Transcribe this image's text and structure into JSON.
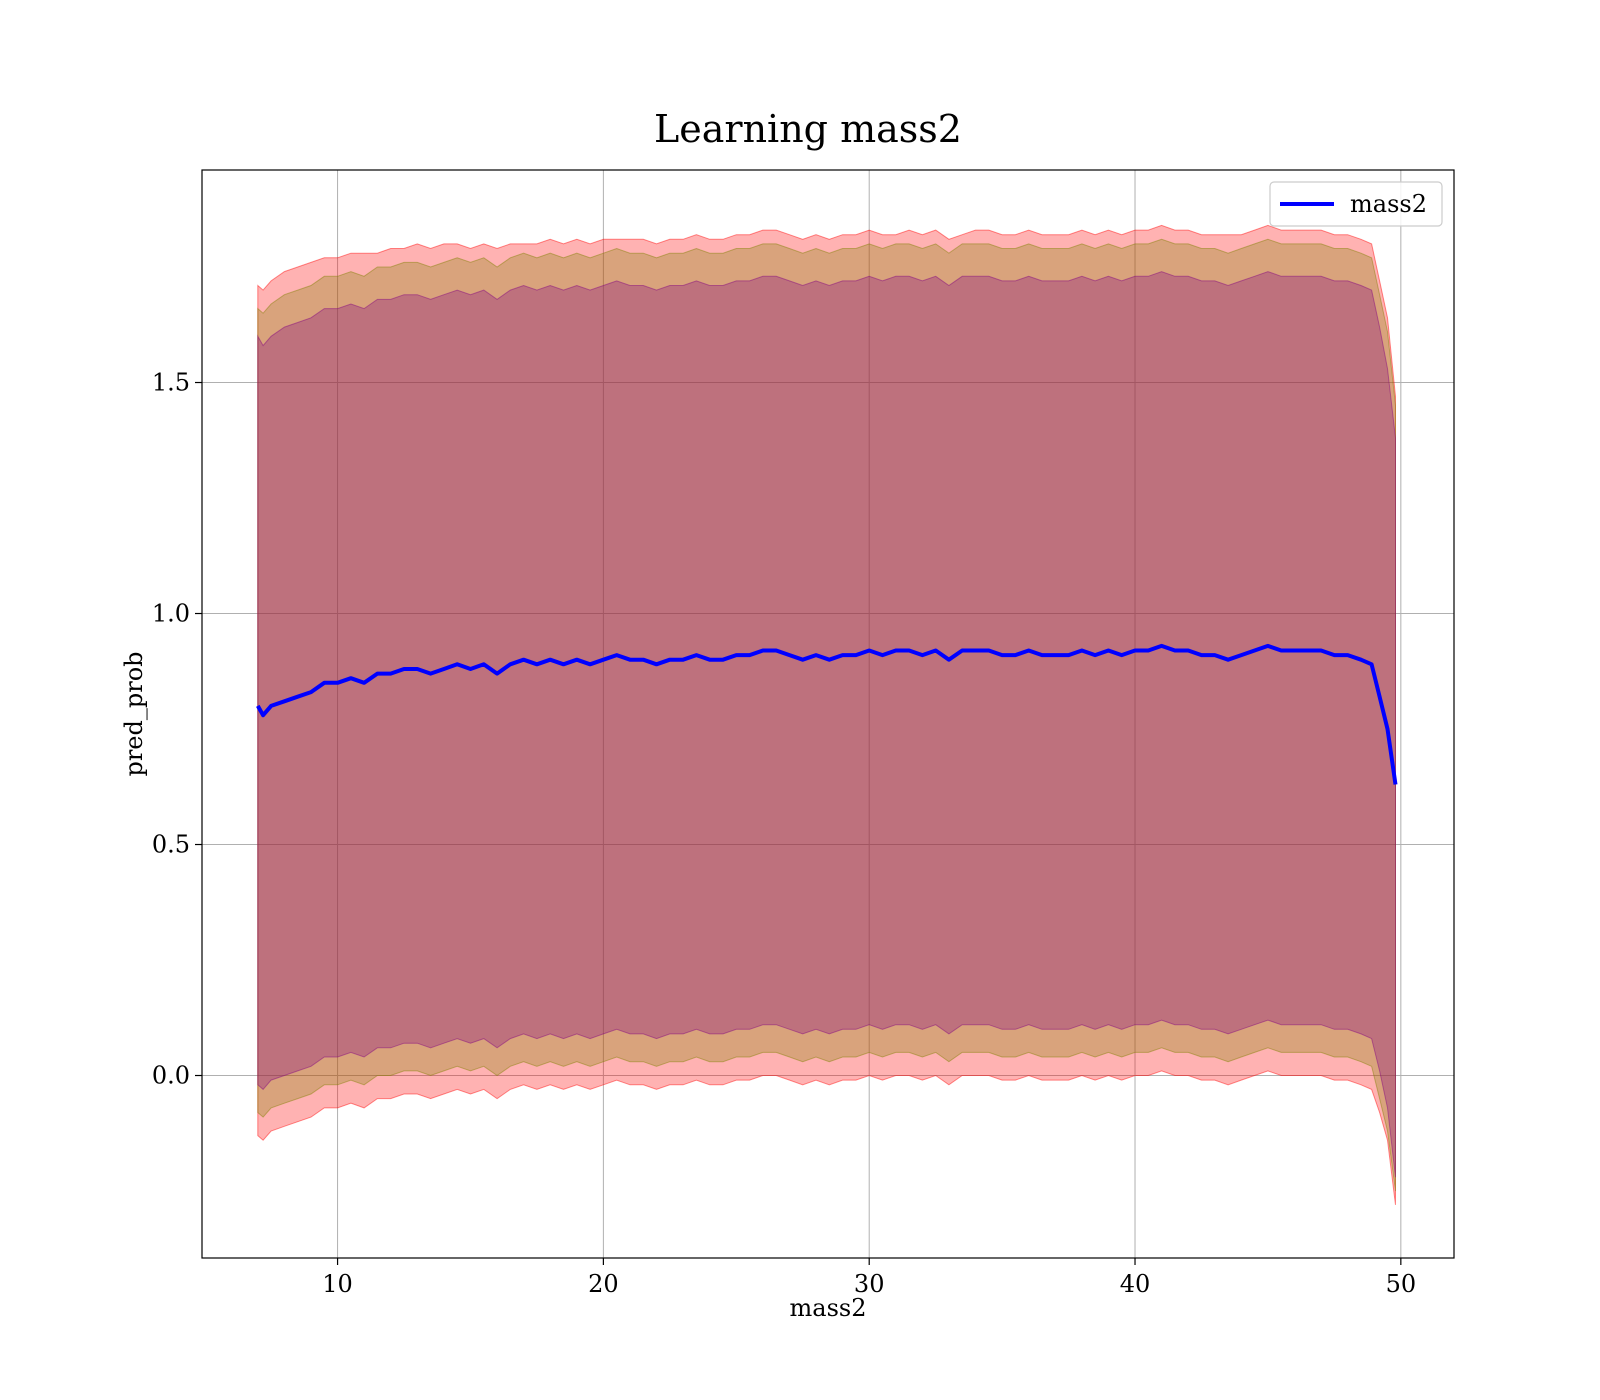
{
  "chart_data": {
    "type": "line",
    "title": "Learning mass2",
    "xlabel": "mass2",
    "ylabel": "pred_prob",
    "xlim": [
      4.9,
      52.0
    ],
    "ylim": [
      -0.395,
      1.96
    ],
    "xticks": [
      10,
      20,
      30,
      40,
      50
    ],
    "yticks": [
      0.0,
      0.5,
      1.0,
      1.5
    ],
    "xtick_labels": [
      "10",
      "20",
      "30",
      "40",
      "50"
    ],
    "ytick_labels": [
      "0.0",
      "0.5",
      "1.0",
      "1.5"
    ],
    "grid": true,
    "legend_position": "top-right",
    "series": [
      {
        "name": "mass2",
        "color": "#0000ff",
        "x": [
          7.0,
          7.2,
          7.5,
          8.0,
          8.5,
          9.0,
          9.5,
          10.0,
          10.5,
          11.0,
          11.5,
          12.0,
          12.5,
          13.0,
          13.5,
          14.0,
          14.5,
          15.0,
          15.5,
          16.0,
          16.5,
          17.0,
          17.5,
          18.0,
          18.5,
          19.0,
          19.5,
          20.0,
          20.5,
          21.0,
          21.5,
          22.0,
          22.5,
          23.0,
          23.5,
          24.0,
          24.5,
          25.0,
          25.5,
          26.0,
          26.5,
          27.0,
          27.5,
          28.0,
          28.5,
          29.0,
          29.5,
          30.0,
          30.5,
          31.0,
          31.5,
          32.0,
          32.5,
          33.0,
          33.5,
          34.0,
          34.5,
          35.0,
          35.5,
          36.0,
          36.5,
          37.0,
          37.5,
          38.0,
          38.5,
          39.0,
          39.5,
          40.0,
          40.5,
          41.0,
          41.5,
          42.0,
          42.5,
          43.0,
          43.5,
          44.0,
          44.5,
          45.0,
          45.5,
          46.0,
          46.5,
          47.0,
          47.5,
          48.0,
          48.5,
          48.9,
          49.2,
          49.5,
          49.8
        ],
        "y": [
          0.8,
          0.78,
          0.8,
          0.81,
          0.82,
          0.83,
          0.85,
          0.85,
          0.86,
          0.85,
          0.87,
          0.87,
          0.88,
          0.88,
          0.87,
          0.88,
          0.89,
          0.88,
          0.89,
          0.87,
          0.89,
          0.9,
          0.89,
          0.9,
          0.89,
          0.9,
          0.89,
          0.9,
          0.91,
          0.9,
          0.9,
          0.89,
          0.9,
          0.9,
          0.91,
          0.9,
          0.9,
          0.91,
          0.91,
          0.92,
          0.92,
          0.91,
          0.9,
          0.91,
          0.9,
          0.91,
          0.91,
          0.92,
          0.91,
          0.92,
          0.92,
          0.91,
          0.92,
          0.9,
          0.92,
          0.92,
          0.92,
          0.91,
          0.91,
          0.92,
          0.91,
          0.91,
          0.91,
          0.92,
          0.91,
          0.92,
          0.91,
          0.92,
          0.92,
          0.93,
          0.92,
          0.92,
          0.91,
          0.91,
          0.9,
          0.91,
          0.92,
          0.93,
          0.92,
          0.92,
          0.92,
          0.92,
          0.91,
          0.91,
          0.9,
          0.89,
          0.82,
          0.75,
          0.63
        ]
      }
    ],
    "bands": [
      {
        "color": "#ff0000",
        "opacity": 0.3,
        "upper": [
          1.71,
          1.7,
          1.72,
          1.74,
          1.75,
          1.76,
          1.77,
          1.77,
          1.78,
          1.78,
          1.78,
          1.79,
          1.79,
          1.8,
          1.79,
          1.8,
          1.8,
          1.79,
          1.8,
          1.79,
          1.8,
          1.8,
          1.8,
          1.81,
          1.8,
          1.81,
          1.8,
          1.81,
          1.81,
          1.81,
          1.81,
          1.8,
          1.81,
          1.81,
          1.82,
          1.81,
          1.81,
          1.82,
          1.82,
          1.83,
          1.83,
          1.82,
          1.81,
          1.82,
          1.81,
          1.82,
          1.82,
          1.83,
          1.82,
          1.82,
          1.83,
          1.82,
          1.83,
          1.81,
          1.82,
          1.83,
          1.83,
          1.82,
          1.82,
          1.83,
          1.82,
          1.82,
          1.82,
          1.83,
          1.82,
          1.83,
          1.82,
          1.83,
          1.83,
          1.84,
          1.83,
          1.83,
          1.82,
          1.82,
          1.82,
          1.82,
          1.83,
          1.84,
          1.83,
          1.83,
          1.83,
          1.83,
          1.82,
          1.82,
          1.81,
          1.8,
          1.72,
          1.64,
          1.47
        ],
        "lower": [
          -0.13,
          -0.14,
          -0.12,
          -0.11,
          -0.1,
          -0.09,
          -0.07,
          -0.07,
          -0.06,
          -0.07,
          -0.05,
          -0.05,
          -0.04,
          -0.04,
          -0.05,
          -0.04,
          -0.03,
          -0.04,
          -0.03,
          -0.05,
          -0.03,
          -0.02,
          -0.03,
          -0.02,
          -0.03,
          -0.02,
          -0.03,
          -0.02,
          -0.01,
          -0.02,
          -0.02,
          -0.03,
          -0.02,
          -0.02,
          -0.01,
          -0.02,
          -0.02,
          -0.01,
          -0.01,
          0.0,
          0.0,
          -0.01,
          -0.02,
          -0.01,
          -0.02,
          -0.01,
          -0.01,
          0.0,
          -0.01,
          0.0,
          0.0,
          -0.01,
          0.0,
          -0.02,
          0.0,
          0.0,
          0.0,
          -0.01,
          -0.01,
          0.0,
          -0.01,
          -0.01,
          -0.01,
          0.0,
          -0.01,
          0.0,
          -0.01,
          0.0,
          0.0,
          0.01,
          0.0,
          0.0,
          -0.01,
          -0.01,
          -0.02,
          -0.01,
          0.0,
          0.01,
          0.0,
          0.0,
          0.0,
          0.0,
          -0.01,
          -0.01,
          -0.02,
          -0.03,
          -0.08,
          -0.14,
          -0.28
        ]
      },
      {
        "color": "#808000",
        "opacity": 0.3,
        "upper": [
          1.66,
          1.65,
          1.67,
          1.69,
          1.7,
          1.71,
          1.73,
          1.73,
          1.74,
          1.73,
          1.75,
          1.75,
          1.76,
          1.76,
          1.75,
          1.76,
          1.77,
          1.76,
          1.77,
          1.75,
          1.77,
          1.78,
          1.77,
          1.78,
          1.77,
          1.78,
          1.77,
          1.78,
          1.79,
          1.78,
          1.78,
          1.77,
          1.78,
          1.78,
          1.79,
          1.78,
          1.78,
          1.79,
          1.79,
          1.8,
          1.8,
          1.79,
          1.78,
          1.79,
          1.78,
          1.79,
          1.79,
          1.8,
          1.79,
          1.8,
          1.8,
          1.79,
          1.8,
          1.78,
          1.8,
          1.8,
          1.8,
          1.79,
          1.79,
          1.8,
          1.79,
          1.79,
          1.79,
          1.8,
          1.79,
          1.8,
          1.79,
          1.8,
          1.8,
          1.81,
          1.8,
          1.8,
          1.79,
          1.79,
          1.78,
          1.79,
          1.8,
          1.81,
          1.8,
          1.8,
          1.8,
          1.8,
          1.79,
          1.79,
          1.78,
          1.77,
          1.69,
          1.61,
          1.45
        ],
        "lower": [
          -0.08,
          -0.09,
          -0.07,
          -0.06,
          -0.05,
          -0.04,
          -0.02,
          -0.02,
          -0.01,
          -0.02,
          0.0,
          0.0,
          0.01,
          0.01,
          0.0,
          0.01,
          0.02,
          0.01,
          0.02,
          0.0,
          0.02,
          0.03,
          0.02,
          0.03,
          0.02,
          0.03,
          0.02,
          0.03,
          0.04,
          0.03,
          0.03,
          0.02,
          0.03,
          0.03,
          0.04,
          0.03,
          0.03,
          0.04,
          0.04,
          0.05,
          0.05,
          0.04,
          0.03,
          0.04,
          0.03,
          0.04,
          0.04,
          0.05,
          0.04,
          0.05,
          0.05,
          0.04,
          0.05,
          0.03,
          0.05,
          0.05,
          0.05,
          0.04,
          0.04,
          0.05,
          0.04,
          0.04,
          0.04,
          0.05,
          0.04,
          0.05,
          0.04,
          0.05,
          0.05,
          0.06,
          0.05,
          0.05,
          0.04,
          0.04,
          0.03,
          0.04,
          0.05,
          0.06,
          0.05,
          0.05,
          0.05,
          0.05,
          0.04,
          0.04,
          0.03,
          0.02,
          -0.05,
          -0.12,
          -0.25
        ]
      },
      {
        "color": "#800080",
        "opacity": 0.3,
        "upper": [
          1.6,
          1.58,
          1.6,
          1.62,
          1.63,
          1.64,
          1.66,
          1.66,
          1.67,
          1.66,
          1.68,
          1.68,
          1.69,
          1.69,
          1.68,
          1.69,
          1.7,
          1.69,
          1.7,
          1.68,
          1.7,
          1.71,
          1.7,
          1.71,
          1.7,
          1.71,
          1.7,
          1.71,
          1.72,
          1.71,
          1.71,
          1.7,
          1.71,
          1.71,
          1.72,
          1.71,
          1.71,
          1.72,
          1.72,
          1.73,
          1.73,
          1.72,
          1.71,
          1.72,
          1.71,
          1.72,
          1.72,
          1.73,
          1.72,
          1.73,
          1.73,
          1.72,
          1.73,
          1.71,
          1.73,
          1.73,
          1.73,
          1.72,
          1.72,
          1.73,
          1.72,
          1.72,
          1.72,
          1.73,
          1.72,
          1.73,
          1.72,
          1.73,
          1.73,
          1.74,
          1.73,
          1.73,
          1.72,
          1.72,
          1.71,
          1.72,
          1.73,
          1.74,
          1.73,
          1.73,
          1.73,
          1.73,
          1.72,
          1.72,
          1.71,
          1.7,
          1.62,
          1.53,
          1.38
        ],
        "lower": [
          -0.02,
          -0.03,
          -0.01,
          0.0,
          0.01,
          0.02,
          0.04,
          0.04,
          0.05,
          0.04,
          0.06,
          0.06,
          0.07,
          0.07,
          0.06,
          0.07,
          0.08,
          0.07,
          0.08,
          0.06,
          0.08,
          0.09,
          0.08,
          0.09,
          0.08,
          0.09,
          0.08,
          0.09,
          0.1,
          0.09,
          0.09,
          0.08,
          0.09,
          0.09,
          0.1,
          0.09,
          0.09,
          0.1,
          0.1,
          0.11,
          0.11,
          0.1,
          0.09,
          0.1,
          0.09,
          0.1,
          0.1,
          0.11,
          0.1,
          0.11,
          0.11,
          0.1,
          0.11,
          0.09,
          0.11,
          0.11,
          0.11,
          0.1,
          0.1,
          0.11,
          0.1,
          0.1,
          0.1,
          0.11,
          0.1,
          0.11,
          0.1,
          0.11,
          0.11,
          0.12,
          0.11,
          0.11,
          0.1,
          0.1,
          0.09,
          0.1,
          0.11,
          0.12,
          0.11,
          0.11,
          0.11,
          0.11,
          0.1,
          0.1,
          0.09,
          0.08,
          0.01,
          -0.07,
          -0.22
        ]
      }
    ]
  }
}
